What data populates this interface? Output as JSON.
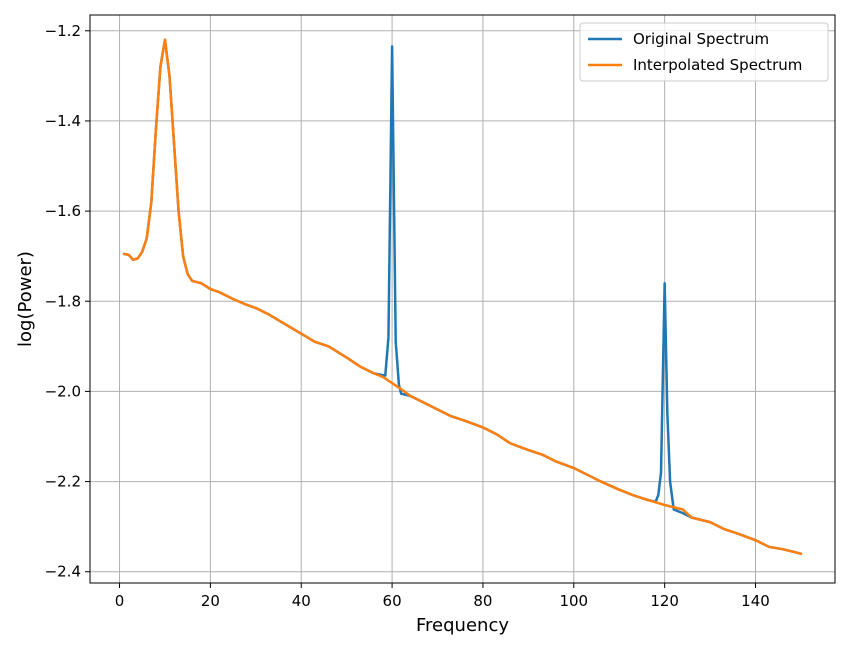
{
  "chart_data": {
    "type": "line",
    "title": "",
    "xlabel": "Frequency",
    "ylabel": "log(Power)",
    "xlim": [
      -6.5,
      157.5
    ],
    "ylim": [
      -2.425,
      -1.165
    ],
    "xticks": [
      0,
      20,
      40,
      60,
      80,
      100,
      120,
      140
    ],
    "xtick_labels": [
      "0",
      "20",
      "40",
      "60",
      "80",
      "100",
      "120",
      "140"
    ],
    "yticks": [
      -1.2,
      -1.4,
      -1.6,
      -1.8,
      -2.0,
      -2.2,
      -2.4
    ],
    "ytick_labels": [
      "−1.2",
      "−1.4",
      "−1.6",
      "−1.8",
      "−2.0",
      "−2.2",
      "−2.4"
    ],
    "grid": true,
    "legend_position": "top-right",
    "series": [
      {
        "name": "Original Spectrum",
        "color": "#1f77b4",
        "x": [
          1,
          2,
          3,
          4,
          5,
          6,
          7,
          8,
          9,
          10,
          11,
          12,
          13,
          14,
          15,
          16,
          18,
          20,
          22,
          25,
          28,
          30,
          33,
          36,
          40,
          43,
          46,
          50,
          53,
          56,
          58.5,
          59.2,
          60,
          60.8,
          61.5,
          62,
          64,
          67,
          70,
          73,
          76,
          80,
          83,
          86,
          90,
          93,
          96,
          100,
          103,
          106,
          110,
          113,
          116,
          118,
          118.6,
          119.2,
          120,
          120.6,
          121.2,
          122,
          124,
          126,
          130,
          133,
          136,
          140,
          143,
          146,
          150
        ],
        "values": [
          -1.695,
          -1.697,
          -1.708,
          -1.705,
          -1.69,
          -1.66,
          -1.58,
          -1.42,
          -1.28,
          -1.22,
          -1.3,
          -1.45,
          -1.6,
          -1.7,
          -1.74,
          -1.755,
          -1.76,
          -1.773,
          -1.78,
          -1.795,
          -1.808,
          -1.815,
          -1.83,
          -1.848,
          -1.872,
          -1.89,
          -1.9,
          -1.925,
          -1.945,
          -1.96,
          -1.965,
          -1.88,
          -1.235,
          -1.89,
          -1.985,
          -2.005,
          -2.01,
          -2.025,
          -2.04,
          -2.055,
          -2.065,
          -2.08,
          -2.095,
          -2.115,
          -2.13,
          -2.14,
          -2.155,
          -2.17,
          -2.185,
          -2.2,
          -2.218,
          -2.23,
          -2.24,
          -2.245,
          -2.23,
          -2.18,
          -1.76,
          -2.05,
          -2.2,
          -2.262,
          -2.27,
          -2.28,
          -2.29,
          -2.305,
          -2.315,
          -2.33,
          -2.345,
          -2.35,
          -2.36
        ]
      },
      {
        "name": "Interpolated Spectrum",
        "color": "#ff7f0e",
        "x": [
          1,
          2,
          3,
          4,
          5,
          6,
          7,
          8,
          9,
          10,
          11,
          12,
          13,
          14,
          15,
          16,
          18,
          20,
          22,
          25,
          28,
          30,
          33,
          36,
          40,
          43,
          46,
          50,
          53,
          56,
          58,
          62,
          64,
          67,
          70,
          73,
          76,
          80,
          83,
          86,
          90,
          93,
          96,
          100,
          103,
          106,
          110,
          113,
          116,
          120,
          124,
          126,
          130,
          133,
          136,
          140,
          143,
          146,
          150
        ],
        "values": [
          -1.695,
          -1.697,
          -1.708,
          -1.705,
          -1.69,
          -1.66,
          -1.58,
          -1.42,
          -1.28,
          -1.22,
          -1.3,
          -1.45,
          -1.6,
          -1.7,
          -1.74,
          -1.755,
          -1.76,
          -1.773,
          -1.78,
          -1.795,
          -1.808,
          -1.815,
          -1.83,
          -1.848,
          -1.872,
          -1.89,
          -1.9,
          -1.925,
          -1.945,
          -1.96,
          -1.968,
          -1.995,
          -2.01,
          -2.025,
          -2.04,
          -2.055,
          -2.065,
          -2.08,
          -2.095,
          -2.115,
          -2.13,
          -2.14,
          -2.155,
          -2.17,
          -2.185,
          -2.2,
          -2.218,
          -2.23,
          -2.24,
          -2.252,
          -2.262,
          -2.28,
          -2.29,
          -2.305,
          -2.315,
          -2.33,
          -2.345,
          -2.35,
          -2.36
        ]
      }
    ]
  }
}
